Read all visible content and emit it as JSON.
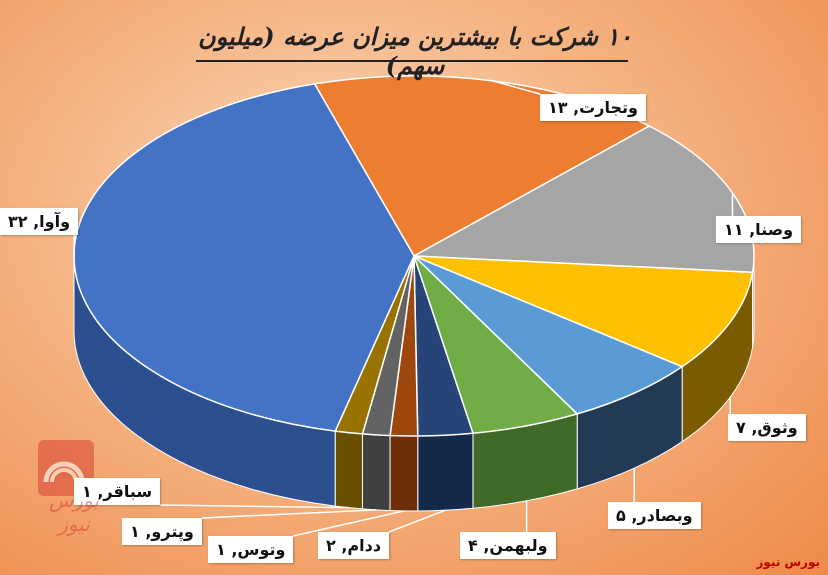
{
  "chart_data": {
    "type": "pie",
    "title": "۱۰ شرکت با بیشترین میزان عرضه (میلیون سهم)",
    "slices": [
      {
        "name": "وتجارت",
        "value": 13,
        "color": "#ed7d31",
        "side": "#b65b1f"
      },
      {
        "name": "وصنا",
        "value": 11,
        "color": "#a5a5a5",
        "side": "#6d6d6d"
      },
      {
        "name": "وثوق",
        "value": 7,
        "color": "#ffc000",
        "side": "#7a5b00"
      },
      {
        "name": "وبصادر",
        "value": 5,
        "color": "#5b9bd5",
        "side": "#233a57"
      },
      {
        "name": "ولبهمن",
        "value": 4,
        "color": "#70ad47",
        "side": "#3f6a28"
      },
      {
        "name": "ددام",
        "value": 2,
        "color": "#264478",
        "side": "#15294a"
      },
      {
        "name": "وتوس",
        "value": 1,
        "color": "#9e480e",
        "side": "#6e2f08"
      },
      {
        "name": "وپترو",
        "value": 1,
        "color": "#636363",
        "side": "#404040"
      },
      {
        "name": "سباقر",
        "value": 1,
        "color": "#997300",
        "side": "#6a4f00"
      },
      {
        "name": "وآوا",
        "value": 32,
        "color": "#4472c4",
        "side": "#2c4f8f"
      }
    ],
    "data_labels": [
      "وتجارت, ۱۳",
      "وصنا, ۱۱",
      "وثوق, ۷",
      "وبصادر, ۵",
      "ولبهمن, ۴",
      "ددام, ۲",
      "وتوس, ۱",
      "وپترو, ۱",
      "سباقر, ۱",
      "وآوا, ۳۲"
    ]
  },
  "logo": {
    "text": "بورس نیوز"
  },
  "source": "بورس نیوز"
}
